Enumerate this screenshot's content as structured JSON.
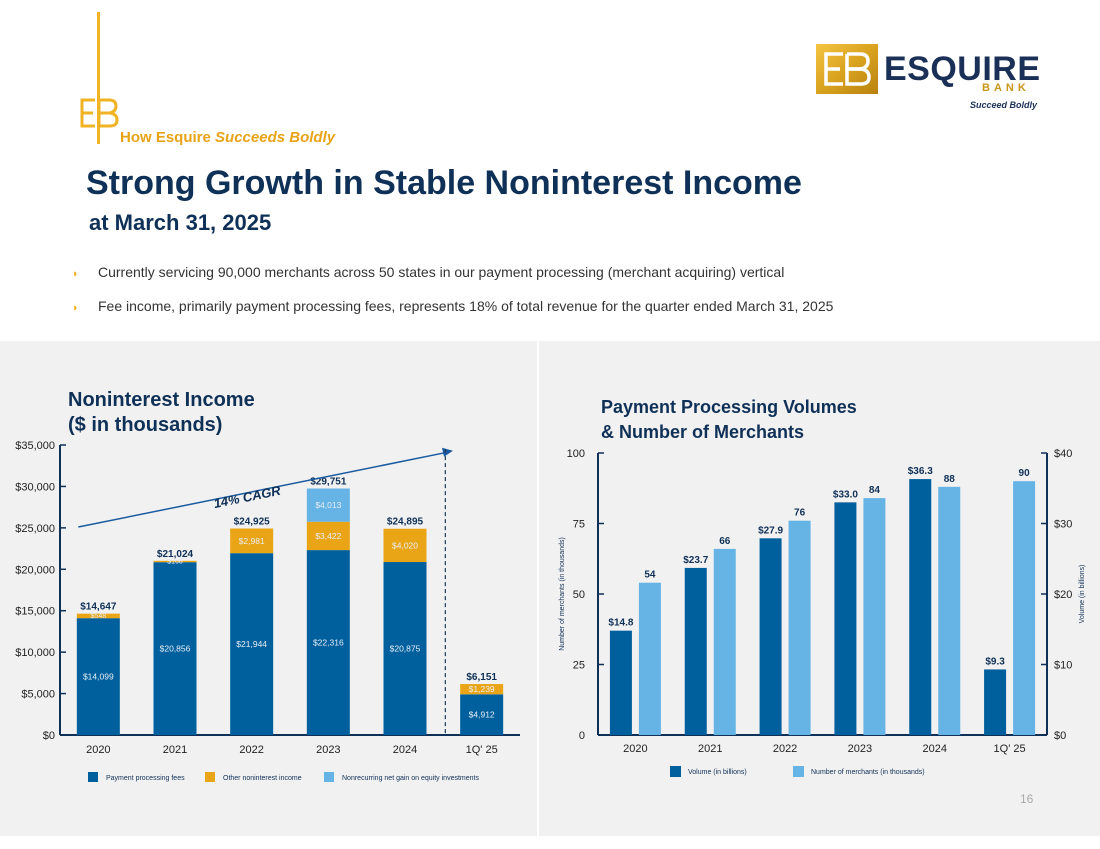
{
  "header": {
    "tagline_prefix": "How Esquire ",
    "tagline_emph": "Succeeds Boldly",
    "brand_name": "ESQUIRE",
    "brand_sub": "BANK",
    "brand_motto": "Succeed Boldly",
    "title": "Strong Growth in Stable Noninterest Income",
    "subtitle": "at March 31, 2025",
    "page_number": "16"
  },
  "bullets": [
    "Currently servicing 90,000 merchants across 50 states in our payment processing (merchant acquiring) vertical",
    "Fee income, primarily payment processing fees, represents 18% of total revenue for the quarter ended March 31, 2025"
  ],
  "colors": {
    "dark_blue": "#00609e",
    "gold": "#eaa517",
    "light_blue": "#66b4e6",
    "navy": "#0f3057"
  },
  "chart_data": [
    {
      "type": "bar",
      "stacked": true,
      "title_line1": "Noninterest Income",
      "title_line2": "($ in thousands)",
      "categories": [
        "2020",
        "2021",
        "2022",
        "2023",
        "2024",
        "1Q' 25"
      ],
      "series": [
        {
          "name": "Payment processing fees",
          "color": "#00609e",
          "values": [
            14099,
            20856,
            21944,
            22316,
            20875,
            4912
          ],
          "labels": [
            "$14,099",
            "$20,856",
            "$21,944",
            "$22,316",
            "$20,875",
            "$4,912"
          ]
        },
        {
          "name": "Other noninterest income",
          "color": "#eaa517",
          "values": [
            548,
            168,
            2981,
            3422,
            4020,
            1239
          ],
          "labels": [
            "$548",
            "$168",
            "$2,981",
            "$3,422",
            "$4,020",
            "$1,239"
          ]
        },
        {
          "name": "Nonrecurring net gain on equity investments",
          "color": "#66b4e6",
          "values": [
            0,
            0,
            0,
            4013,
            0,
            0
          ],
          "labels": [
            "",
            "",
            "",
            "$4,013",
            "",
            ""
          ]
        }
      ],
      "totals": [
        14647,
        21024,
        24925,
        29751,
        24895,
        6151
      ],
      "total_labels": [
        "$14,647",
        "$21,024",
        "$24,925",
        "$29,751",
        "$24,895",
        "$6,151"
      ],
      "ylim": [
        0,
        35000
      ],
      "yticks": [
        0,
        5000,
        10000,
        15000,
        20000,
        25000,
        30000,
        35000
      ],
      "ytick_labels": [
        "$0",
        "$5,000",
        "$10,000",
        "$15,000",
        "$20,000",
        "$25,000",
        "$30,000",
        "$35,000"
      ],
      "annotation": "14% CAGR",
      "legend_position": "bottom"
    },
    {
      "type": "bar",
      "title_line1": "Payment Processing Volumes",
      "title_line2": "& Number of Merchants",
      "categories": [
        "2020",
        "2021",
        "2022",
        "2023",
        "2024",
        "1Q' 25"
      ],
      "series": [
        {
          "name": "Volume (in billions)",
          "axis": "right",
          "color": "#00609e",
          "values": [
            14.8,
            23.7,
            27.9,
            33.0,
            36.3,
            9.3
          ],
          "labels": [
            "$14.8",
            "$23.7",
            "$27.9",
            "$33.0",
            "$36.3",
            "$9.3"
          ]
        },
        {
          "name": "Number of merchants (in thousands)",
          "axis": "left",
          "color": "#66b4e6",
          "values": [
            54,
            66,
            76,
            84,
            88,
            90
          ],
          "labels": [
            "54",
            "66",
            "76",
            "84",
            "88",
            "90"
          ]
        }
      ],
      "ylabel_left": "Number of merchants (in thousands)",
      "ylabel_right": "Volume (in billions)",
      "ylim_left": [
        0,
        100
      ],
      "ylim_right": [
        0,
        40
      ],
      "yticks_left": [
        "0",
        "25",
        "50",
        "75",
        "100"
      ],
      "yticks_right": [
        "$0",
        "$10",
        "$20",
        "$30",
        "$40"
      ],
      "legend_position": "bottom"
    }
  ]
}
